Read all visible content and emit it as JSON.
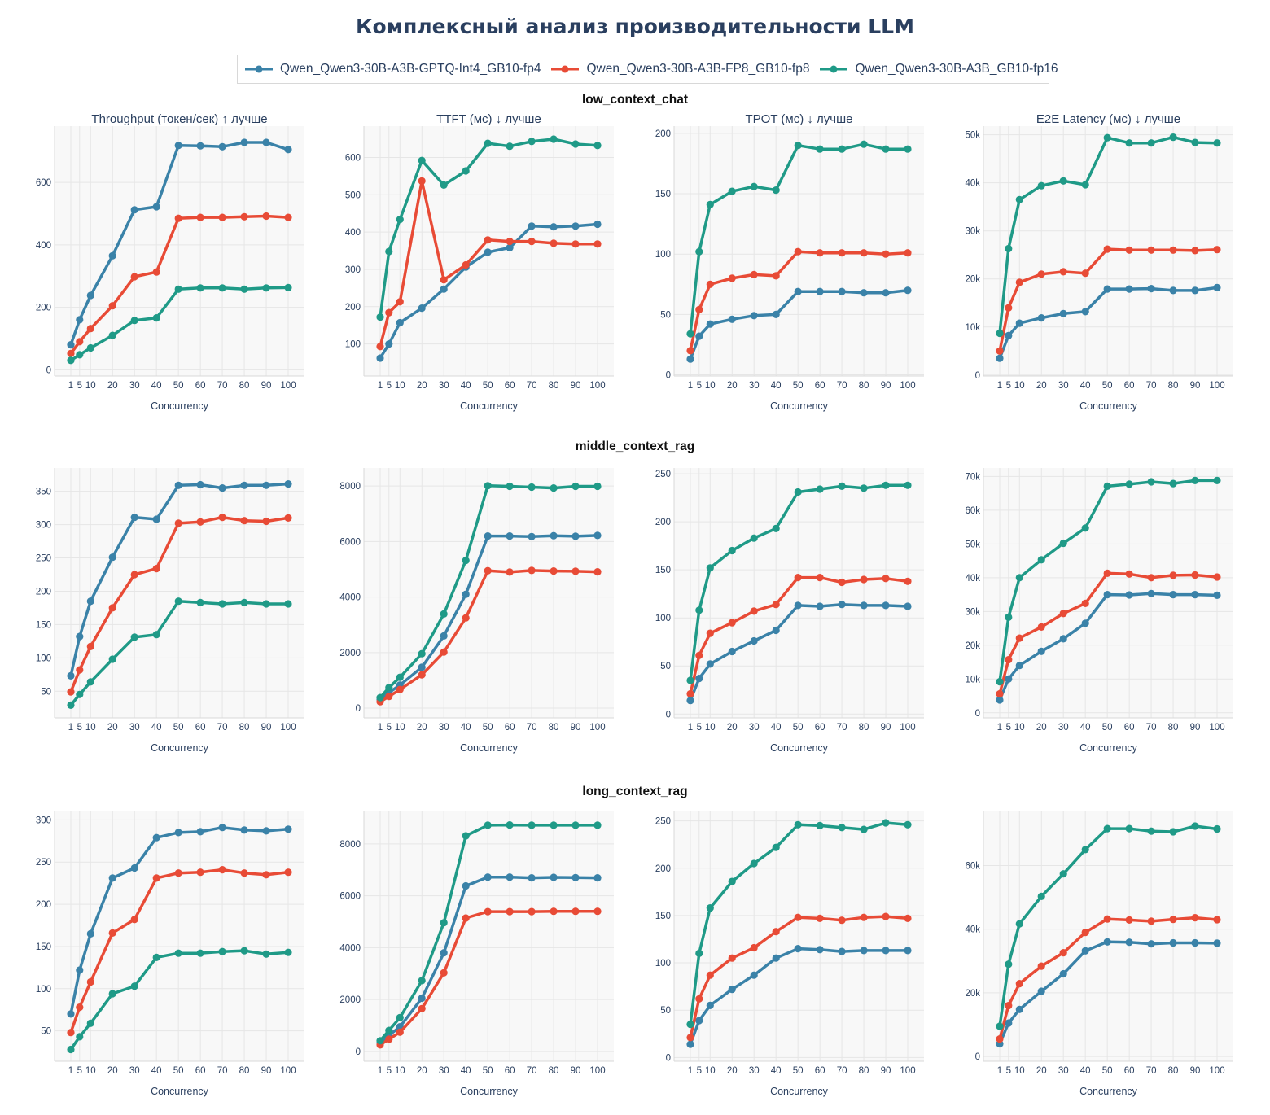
{
  "title": "Комплексный анализ производительности LLM",
  "legend": [
    {
      "name": "Qwen_Qwen3-30B-A3B-GPTQ-Int4_GB10-fp4",
      "color": "#3a82a8"
    },
    {
      "name": "Qwen_Qwen3-30B-A3B-FP8_GB10-fp8",
      "color": "#e84b36"
    },
    {
      "name": "Qwen_Qwen3-30B-A3B_GB10-fp16",
      "color": "#1f9a87"
    }
  ],
  "rows": [
    {
      "title": "low_context_chat",
      "show_titles": true
    },
    {
      "title": "middle_context_rag",
      "show_titles": false
    },
    {
      "title": "long_context_rag",
      "show_titles": false
    }
  ],
  "chart_data": [
    {
      "type": "line",
      "row": 0,
      "col": 0,
      "title": "Throughput (токен/сек) ↑ лучше",
      "xlabel": "Concurrency",
      "ylabel": "",
      "x": [
        1,
        5,
        10,
        20,
        30,
        40,
        50,
        60,
        70,
        80,
        90,
        100
      ],
      "ylim": [
        -20,
        780
      ],
      "yticks": [
        0,
        200,
        400,
        600
      ],
      "ytick_labels": [
        "0",
        "200",
        "400",
        "600"
      ],
      "series": [
        {
          "name": "Qwen_Qwen3-30B-A3B-GPTQ-Int4_GB10-fp4",
          "values": [
            80,
            160,
            238,
            365,
            512,
            522,
            718,
            717,
            714,
            728,
            728,
            705
          ]
        },
        {
          "name": "Qwen_Qwen3-30B-A3B-FP8_GB10-fp8",
          "values": [
            52,
            90,
            132,
            205,
            298,
            313,
            485,
            488,
            488,
            490,
            492,
            488
          ]
        },
        {
          "name": "Qwen_Qwen3-30B-A3B_GB10-fp16",
          "values": [
            30,
            48,
            70,
            110,
            158,
            166,
            258,
            262,
            262,
            258,
            262,
            263
          ]
        }
      ]
    },
    {
      "type": "line",
      "row": 0,
      "col": 1,
      "title": "TTFT (мс) ↓ лучше",
      "xlabel": "Concurrency",
      "ylabel": "",
      "x": [
        1,
        5,
        10,
        20,
        30,
        40,
        50,
        60,
        70,
        80,
        90,
        100
      ],
      "ylim": [
        14,
        684
      ],
      "yticks": [
        100,
        200,
        300,
        400,
        500,
        600
      ],
      "ytick_labels": [
        "100",
        "200",
        "300",
        "400",
        "500",
        "600"
      ],
      "series": [
        {
          "name": "Qwen_Qwen3-30B-A3B-GPTQ-Int4_GB10-fp4",
          "values": [
            62,
            100,
            157,
            196,
            247,
            306,
            346,
            358,
            416,
            414,
            416,
            421
          ]
        },
        {
          "name": "Qwen_Qwen3-30B-A3B-FP8_GB10-fp8",
          "values": [
            93,
            184,
            213,
            537,
            272,
            312,
            379,
            375,
            375,
            370,
            368,
            368
          ]
        },
        {
          "name": "Qwen_Qwen3-30B-A3B_GB10-fp16",
          "values": [
            172,
            348,
            434,
            592,
            526,
            564,
            638,
            630,
            643,
            649,
            636,
            632
          ]
        }
      ]
    },
    {
      "type": "line",
      "row": 0,
      "col": 2,
      "title": "TPOT (мс) ↓ лучше",
      "xlabel": "Concurrency",
      "ylabel": "",
      "x": [
        1,
        5,
        10,
        20,
        30,
        40,
        50,
        60,
        70,
        80,
        90,
        100
      ],
      "ylim": [
        -1,
        206
      ],
      "yticks": [
        0,
        50,
        100,
        150,
        200
      ],
      "ytick_labels": [
        "0",
        "50",
        "100",
        "150",
        "200"
      ],
      "series": [
        {
          "name": "Qwen_Qwen3-30B-A3B-GPTQ-Int4_GB10-fp4",
          "values": [
            13,
            32,
            42,
            46,
            49,
            50,
            69,
            69,
            69,
            68,
            68,
            70
          ]
        },
        {
          "name": "Qwen_Qwen3-30B-A3B-FP8_GB10-fp8",
          "values": [
            20,
            54,
            75,
            80,
            83,
            82,
            102,
            101,
            101,
            101,
            100,
            101
          ]
        },
        {
          "name": "Qwen_Qwen3-30B-A3B_GB10-fp16",
          "values": [
            34,
            102,
            141,
            152,
            156,
            153,
            190,
            187,
            187,
            191,
            187,
            187
          ]
        }
      ]
    },
    {
      "type": "line",
      "row": 0,
      "col": 3,
      "title": "E2E Latency (мс) ↓ лучше",
      "xlabel": "Concurrency",
      "ylabel": "",
      "x": [
        1,
        5,
        10,
        20,
        30,
        40,
        50,
        60,
        70,
        80,
        90,
        100
      ],
      "ylim": [
        -200,
        51800
      ],
      "yticks": [
        0,
        10000,
        20000,
        30000,
        40000,
        50000
      ],
      "ytick_labels": [
        "0",
        "10k",
        "20k",
        "30k",
        "40k",
        "50k"
      ],
      "series": [
        {
          "name": "Qwen_Qwen3-30B-A3B-GPTQ-Int4_GB10-fp4",
          "values": [
            3500,
            8200,
            10800,
            11900,
            12800,
            13200,
            17900,
            17900,
            18000,
            17600,
            17600,
            18200
          ]
        },
        {
          "name": "Qwen_Qwen3-30B-A3B-FP8_GB10-fp8",
          "values": [
            5000,
            14000,
            19300,
            21000,
            21500,
            21200,
            26200,
            26000,
            26000,
            26000,
            25900,
            26100
          ]
        },
        {
          "name": "Qwen_Qwen3-30B-A3B_GB10-fp16",
          "values": [
            8700,
            26300,
            36500,
            39400,
            40400,
            39600,
            49400,
            48300,
            48300,
            49500,
            48400,
            48300
          ]
        }
      ]
    },
    {
      "type": "line",
      "row": 1,
      "col": 0,
      "title": "",
      "xlabel": "Concurrency",
      "ylabel": "",
      "x": [
        1,
        5,
        10,
        20,
        30,
        40,
        50,
        60,
        70,
        80,
        90,
        100
      ],
      "ylim": [
        10,
        385
      ],
      "yticks": [
        50,
        100,
        150,
        200,
        250,
        300,
        350
      ],
      "ytick_labels": [
        "50",
        "100",
        "150",
        "200",
        "250",
        "300",
        "350"
      ],
      "series": [
        {
          "name": "Qwen_Qwen3-30B-A3B-GPTQ-Int4_GB10-fp4",
          "values": [
            73,
            132,
            185,
            251,
            311,
            308,
            359,
            360,
            355,
            359,
            359,
            361
          ]
        },
        {
          "name": "Qwen_Qwen3-30B-A3B-FP8_GB10-fp8",
          "values": [
            49,
            82,
            117,
            175,
            225,
            234,
            302,
            304,
            311,
            306,
            305,
            310
          ]
        },
        {
          "name": "Qwen_Qwen3-30B-A3B_GB10-fp16",
          "values": [
            29,
            45,
            64,
            98,
            131,
            135,
            185,
            183,
            181,
            183,
            181,
            181
          ]
        }
      ]
    },
    {
      "type": "line",
      "row": 1,
      "col": 1,
      "title": "",
      "xlabel": "Concurrency",
      "ylabel": "",
      "x": [
        1,
        5,
        10,
        20,
        30,
        40,
        50,
        60,
        70,
        80,
        90,
        100
      ],
      "ylim": [
        -350,
        8650
      ],
      "yticks": [
        0,
        2000,
        4000,
        6000,
        8000
      ],
      "ytick_labels": [
        "0",
        "2000",
        "4000",
        "6000",
        "8000"
      ],
      "series": [
        {
          "name": "Qwen_Qwen3-30B-A3B-GPTQ-Int4_GB10-fp4",
          "values": [
            310,
            560,
            830,
            1470,
            2600,
            4100,
            6200,
            6200,
            6180,
            6210,
            6190,
            6220
          ]
        },
        {
          "name": "Qwen_Qwen3-30B-A3B-FP8_GB10-fp8",
          "values": [
            230,
            420,
            670,
            1200,
            2020,
            3250,
            4950,
            4900,
            4960,
            4940,
            4930,
            4910
          ]
        },
        {
          "name": "Qwen_Qwen3-30B-A3B_GB10-fp16",
          "values": [
            380,
            740,
            1110,
            1960,
            3390,
            5320,
            8010,
            7990,
            7960,
            7930,
            7990,
            7990
          ]
        }
      ]
    },
    {
      "type": "line",
      "row": 1,
      "col": 2,
      "title": "",
      "xlabel": "Concurrency",
      "ylabel": "",
      "x": [
        1,
        5,
        10,
        20,
        30,
        40,
        50,
        60,
        70,
        80,
        90,
        100
      ],
      "ylim": [
        -4,
        256
      ],
      "yticks": [
        0,
        50,
        100,
        150,
        200,
        250
      ],
      "ytick_labels": [
        "0",
        "50",
        "100",
        "150",
        "200",
        "250"
      ],
      "series": [
        {
          "name": "Qwen_Qwen3-30B-A3B-GPTQ-Int4_GB10-fp4",
          "values": [
            14,
            37,
            52,
            65,
            76,
            87,
            113,
            112,
            114,
            113,
            113,
            112
          ]
        },
        {
          "name": "Qwen_Qwen3-30B-A3B-FP8_GB10-fp8",
          "values": [
            21,
            61,
            84,
            95,
            107,
            114,
            142,
            142,
            137,
            140,
            141,
            138
          ]
        },
        {
          "name": "Qwen_Qwen3-30B-A3B_GB10-fp16",
          "values": [
            35,
            108,
            152,
            170,
            183,
            193,
            231,
            234,
            237,
            235,
            238,
            238
          ]
        }
      ]
    },
    {
      "type": "line",
      "row": 1,
      "col": 3,
      "title": "",
      "xlabel": "Concurrency",
      "ylabel": "",
      "x": [
        1,
        5,
        10,
        20,
        30,
        40,
        50,
        60,
        70,
        80,
        90,
        100
      ],
      "ylim": [
        -1500,
        72500
      ],
      "yticks": [
        0,
        10000,
        20000,
        30000,
        40000,
        50000,
        60000,
        70000
      ],
      "ytick_labels": [
        "0",
        "10k",
        "20k",
        "30k",
        "40k",
        "50k",
        "60k",
        "70k"
      ],
      "series": [
        {
          "name": "Qwen_Qwen3-30B-A3B-GPTQ-Int4_GB10-fp4",
          "values": [
            3800,
            10000,
            14000,
            18200,
            21900,
            26500,
            35000,
            34900,
            35300,
            35000,
            35000,
            34800
          ]
        },
        {
          "name": "Qwen_Qwen3-30B-A3B-FP8_GB10-fp8",
          "values": [
            5600,
            15700,
            22100,
            25400,
            29400,
            32400,
            41300,
            41100,
            40000,
            40700,
            40800,
            40200
          ]
        },
        {
          "name": "Qwen_Qwen3-30B-A3B_GB10-fp16",
          "values": [
            9200,
            28300,
            40000,
            45300,
            50200,
            54700,
            67100,
            67700,
            68400,
            67900,
            68800,
            68800
          ]
        }
      ]
    },
    {
      "type": "line",
      "row": 2,
      "col": 0,
      "title": "",
      "xlabel": "Concurrency",
      "ylabel": "",
      "x": [
        1,
        5,
        10,
        20,
        30,
        40,
        50,
        60,
        70,
        80,
        90,
        100
      ],
      "ylim": [
        14,
        310
      ],
      "yticks": [
        50,
        100,
        150,
        200,
        250,
        300
      ],
      "ytick_labels": [
        "50",
        "100",
        "150",
        "200",
        "250",
        "300"
      ],
      "series": [
        {
          "name": "Qwen_Qwen3-30B-A3B-GPTQ-Int4_GB10-fp4",
          "values": [
            70,
            122,
            165,
            231,
            243,
            279,
            285,
            286,
            291,
            288,
            287,
            289
          ]
        },
        {
          "name": "Qwen_Qwen3-30B-A3B-FP8_GB10-fp8",
          "values": [
            48,
            78,
            108,
            166,
            182,
            231,
            237,
            238,
            241,
            237,
            235,
            238
          ]
        },
        {
          "name": "Qwen_Qwen3-30B-A3B_GB10-fp16",
          "values": [
            28,
            43,
            59,
            94,
            103,
            137,
            142,
            142,
            144,
            145,
            141,
            143
          ]
        }
      ]
    },
    {
      "type": "line",
      "row": 2,
      "col": 1,
      "title": "",
      "xlabel": "Concurrency",
      "ylabel": "",
      "x": [
        1,
        5,
        10,
        20,
        30,
        40,
        50,
        60,
        70,
        80,
        90,
        100
      ],
      "ylim": [
        -380,
        9250
      ],
      "yticks": [
        0,
        2000,
        4000,
        6000,
        8000
      ],
      "ytick_labels": [
        "0",
        "2000",
        "4000",
        "6000",
        "8000"
      ],
      "series": [
        {
          "name": "Qwen_Qwen3-30B-A3B-GPTQ-Int4_GB10-fp4",
          "values": [
            330,
            620,
            950,
            2050,
            3800,
            6380,
            6720,
            6720,
            6690,
            6710,
            6700,
            6690
          ]
        },
        {
          "name": "Qwen_Qwen3-30B-A3B-FP8_GB10-fp8",
          "values": [
            250,
            470,
            740,
            1650,
            3030,
            5140,
            5390,
            5390,
            5390,
            5400,
            5400,
            5400
          ]
        },
        {
          "name": "Qwen_Qwen3-30B-A3B_GB10-fp16",
          "values": [
            410,
            810,
            1300,
            2730,
            4960,
            8310,
            8720,
            8730,
            8720,
            8720,
            8720,
            8720
          ]
        }
      ]
    },
    {
      "type": "line",
      "row": 2,
      "col": 2,
      "title": "",
      "xlabel": "Concurrency",
      "ylabel": "",
      "x": [
        1,
        5,
        10,
        20,
        30,
        40,
        50,
        60,
        70,
        80,
        90,
        100
      ],
      "ylim": [
        -4,
        260
      ],
      "yticks": [
        0,
        50,
        100,
        150,
        200,
        250
      ],
      "ytick_labels": [
        "0",
        "50",
        "100",
        "150",
        "200",
        "250"
      ],
      "series": [
        {
          "name": "Qwen_Qwen3-30B-A3B-GPTQ-Int4_GB10-fp4",
          "values": [
            14,
            39,
            55,
            72,
            87,
            105,
            115,
            114,
            112,
            113,
            113,
            113
          ]
        },
        {
          "name": "Qwen_Qwen3-30B-A3B-FP8_GB10-fp8",
          "values": [
            21,
            62,
            87,
            105,
            116,
            133,
            148,
            147,
            145,
            148,
            149,
            147
          ]
        },
        {
          "name": "Qwen_Qwen3-30B-A3B_GB10-fp16",
          "values": [
            35,
            110,
            158,
            186,
            205,
            222,
            246,
            245,
            243,
            241,
            248,
            246
          ]
        }
      ]
    },
    {
      "type": "line",
      "row": 2,
      "col": 3,
      "title": "",
      "xlabel": "Concurrency",
      "ylabel": "",
      "x": [
        1,
        5,
        10,
        20,
        30,
        40,
        50,
        60,
        70,
        80,
        90,
        100
      ],
      "ylim": [
        -1500,
        77000
      ],
      "yticks": [
        0,
        20000,
        40000,
        60000
      ],
      "ytick_labels": [
        "0",
        "20k",
        "40k",
        "60k"
      ],
      "series": [
        {
          "name": "Qwen_Qwen3-30B-A3B-GPTQ-Int4_GB10-fp4",
          "values": [
            4000,
            10500,
            14800,
            20500,
            26000,
            33200,
            36000,
            35900,
            35400,
            35700,
            35700,
            35600
          ]
        },
        {
          "name": "Qwen_Qwen3-30B-A3B-FP8_GB10-fp8",
          "values": [
            5500,
            16000,
            22900,
            28400,
            32600,
            39000,
            43200,
            42900,
            42500,
            43100,
            43600,
            43000
          ]
        },
        {
          "name": "Qwen_Qwen3-30B-A3B_GB10-fp16",
          "values": [
            9500,
            29000,
            41700,
            50300,
            57400,
            65000,
            71600,
            71600,
            70800,
            70600,
            72400,
            71500
          ]
        }
      ]
    }
  ]
}
